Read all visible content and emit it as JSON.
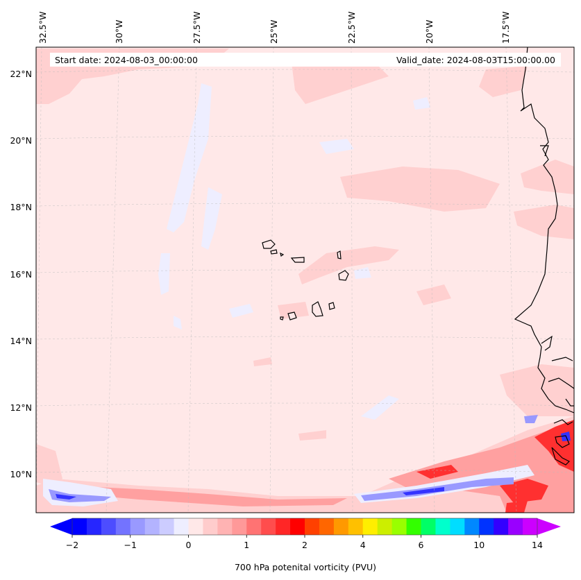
{
  "map": {
    "header": {
      "start_date": "Start date: 2024-08-03_00:00:00",
      "valid_date": "Valid_date: 2024-08-03T15:00:00.00"
    },
    "lon_labels": [
      "32.5°W",
      "30°W",
      "27.5°W",
      "25°W",
      "22.5°W",
      "20°W",
      "17.5°W"
    ],
    "lat_labels": [
      "22°N",
      "20°N",
      "18°N",
      "16°N",
      "14°N",
      "12°N",
      "10°N"
    ],
    "background_color": "#ffe8e8",
    "feature_colors": {
      "light_red": "#ffd0d0",
      "medium_red": "#ffa0a0",
      "strong_red": "#ff3030",
      "light_blue": "#eeeeff",
      "medium_blue": "#9999ff",
      "strong_blue": "#3333ff",
      "coastline": "#000000"
    }
  },
  "colorbar": {
    "label": "700 hPa potenital vorticity (PVU)",
    "tick_labels": [
      "−2",
      "−1",
      "0",
      "1",
      "2",
      "4",
      "6",
      "10",
      "14"
    ],
    "colors": [
      "#0000ff",
      "#2626ff",
      "#4d4dff",
      "#7373ff",
      "#9999ff",
      "#b3b3ff",
      "#ccccff",
      "#eeeeff",
      "#ffe8e8",
      "#ffcccc",
      "#ffb3b3",
      "#ff9999",
      "#ff7373",
      "#ff4d4d",
      "#ff2626",
      "#ff0000",
      "#ff4000",
      "#ff6600",
      "#ff9900",
      "#ffc000",
      "#ffee00",
      "#ccee00",
      "#99ff00",
      "#33ff00",
      "#00ff66",
      "#00ffcc",
      "#00ddff",
      "#0088ff",
      "#0033ff",
      "#3300ff",
      "#9900ff",
      "#cc00ff"
    ],
    "under_color": "#0000ff",
    "over_color": "#cc00ff"
  }
}
